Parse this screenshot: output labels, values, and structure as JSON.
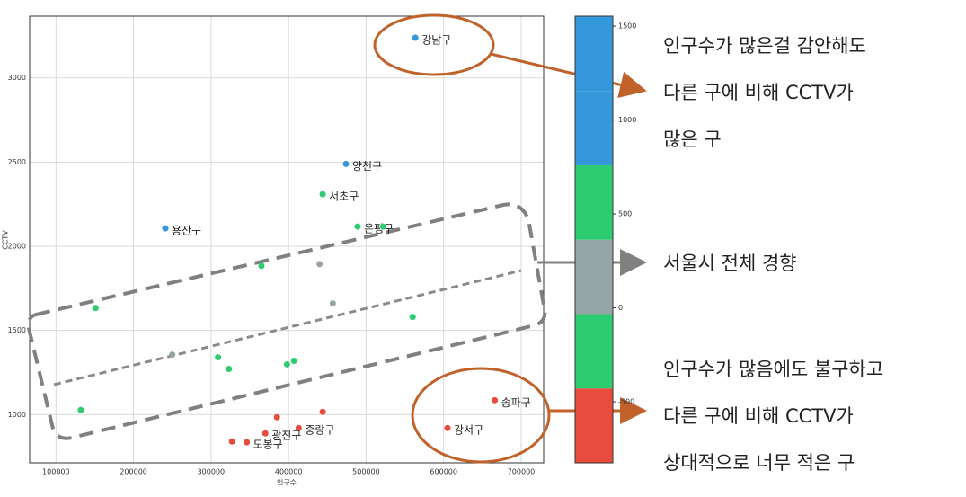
{
  "chart_data": {
    "type": "scatter",
    "x_label": "인구수",
    "y_label": "CCTV",
    "xlim": [
      66000,
      729000
    ],
    "ylim": [
      713,
      3367
    ],
    "xticks": [
      100000,
      200000,
      300000,
      400000,
      500000,
      600000,
      700000
    ],
    "yticks": [
      1000,
      1500,
      2000,
      2500,
      3000
    ],
    "grid": true,
    "x": [
      563500,
      474000,
      444000,
      489000,
      522000,
      241000,
      365000,
      440000,
      457000,
      151000,
      560000,
      250000,
      309000,
      323000,
      398000,
      407000,
      132000,
      666000,
      605000,
      444000,
      385000,
      413000,
      370000,
      346000,
      327000
    ],
    "y": [
      3239,
      2489,
      2309,
      2117,
      2117,
      2106,
      1883,
      1894,
      1660,
      1633,
      1580,
      1356,
      1340,
      1271,
      1298,
      1319,
      1027,
      1085,
      920,
      1016,
      984,
      920,
      888,
      835,
      840
    ],
    "colors": [
      "#3498db",
      "#3498db",
      "#2ecc71",
      "#2ecc71",
      "#2ecc71",
      "#3498db",
      "#2ecc71",
      "#95a5a6",
      "#95a5a6",
      "#2ecc71",
      "#2ecc71",
      "#95a5a6",
      "#2ecc71",
      "#2ecc71",
      "#2ecc71",
      "#2ecc71",
      "#2ecc71",
      "#e74c3c",
      "#e74c3c",
      "#e74c3c",
      "#e74c3c",
      "#e74c3c",
      "#e74c3c",
      "#e74c3c",
      "#e74c3c"
    ],
    "point_labels": [
      "강남구",
      "양천구",
      "서초구",
      "은평구",
      null,
      "용산구",
      null,
      null,
      null,
      null,
      null,
      null,
      null,
      null,
      null,
      null,
      null,
      "송파구",
      "강서구",
      null,
      null,
      "중랑구",
      "광진구",
      "도봉구",
      null
    ],
    "colorbar": {
      "lim": [
        -825,
        1553
      ],
      "ticks": [
        -500,
        0,
        500,
        1000,
        1500
      ],
      "bounds": [
        -825,
        -429,
        -33,
        363,
        759,
        1155,
        1553
      ],
      "colors": [
        "#e74c3c",
        "#2ecc71",
        "#95a5a6",
        "#2ecc71",
        "#3498db",
        "#3498db"
      ]
    },
    "annotations": [
      {
        "lines": [
          "인구수가 많은걸 감안해도",
          "다른 구에 비해 CCTV가",
          "많은 구"
        ]
      },
      {
        "lines": [
          "서울시 전체 경향"
        ]
      },
      {
        "lines": [
          "인구수가 많음에도 불구하고",
          "다른 구에 비해 CCTV가",
          "상대적으로 너무 적은 구"
        ]
      }
    ]
  }
}
